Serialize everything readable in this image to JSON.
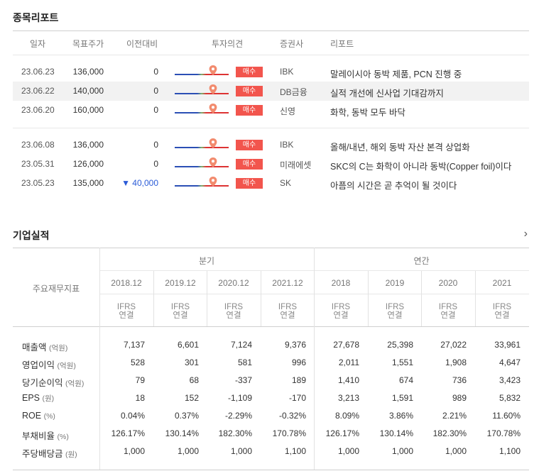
{
  "reports": {
    "title": "종목리포트",
    "headers": [
      "일자",
      "목표주가",
      "이전대비",
      "투자의견",
      "증권사",
      "리포트"
    ],
    "rows": [
      {
        "date": "23.06.23",
        "price": "136,000",
        "diff": "0",
        "diff_down": false,
        "opinion": "매수",
        "broker": "IBK",
        "title": "말레이시아 동박 제품, PCN 진행 중"
      },
      {
        "date": "23.06.22",
        "price": "140,000",
        "diff": "0",
        "diff_down": false,
        "opinion": "매수",
        "broker": "DB금융",
        "title": "실적 개선에 신사업 기대감까지"
      },
      {
        "date": "23.06.20",
        "price": "160,000",
        "diff": "0",
        "diff_down": false,
        "opinion": "매수",
        "broker": "신영",
        "title": "화학, 동박 모두 바닥"
      },
      {
        "date": "23.06.08",
        "price": "136,000",
        "diff": "0",
        "diff_down": false,
        "opinion": "매수",
        "broker": "IBK",
        "title": "올해/내년, 해외 동박 자산 본격 상업화"
      },
      {
        "date": "23.05.31",
        "price": "126,000",
        "diff": "0",
        "diff_down": false,
        "opinion": "매수",
        "broker": "미래에셋",
        "title": "SKC의 C는 화학이 아니라 동박(Copper foil)이다"
      },
      {
        "date": "23.05.23",
        "price": "135,000",
        "diff": "▼ 40,000",
        "diff_down": true,
        "opinion": "매수",
        "broker": "SK",
        "title": "아픔의 시간은 곧 추억이 될 것이다"
      }
    ]
  },
  "financials": {
    "title": "기업실적",
    "row_header": "주요재무지표",
    "group_quarter": "분기",
    "group_annual": "연간",
    "periods": [
      "2018.12",
      "2019.12",
      "2020.12",
      "2021.12",
      "2018",
      "2019",
      "2020",
      "2021"
    ],
    "ifrs_line1": "IFRS",
    "ifrs_line2": "연결",
    "rows": [
      {
        "label": "매출액",
        "unit": "(억원)",
        "values": [
          "7,137",
          "6,601",
          "7,124",
          "9,376",
          "27,678",
          "25,398",
          "27,022",
          "33,961"
        ]
      },
      {
        "label": "영업이익",
        "unit": "(억원)",
        "values": [
          "528",
          "301",
          "581",
          "996",
          "2,011",
          "1,551",
          "1,908",
          "4,647"
        ]
      },
      {
        "label": "당기순이익",
        "unit": "(억원)",
        "values": [
          "79",
          "68",
          "-337",
          "189",
          "1,410",
          "674",
          "736",
          "3,423"
        ]
      },
      {
        "label": "EPS",
        "unit": "(원)",
        "values": [
          "18",
          "152",
          "-1,109",
          "-170",
          "3,213",
          "1,591",
          "989",
          "5,832"
        ]
      },
      {
        "label": "ROE",
        "unit": "(%)",
        "values": [
          "0.04%",
          "0.37%",
          "-2.29%",
          "-0.32%",
          "8.09%",
          "3.86%",
          "2.21%",
          "11.60%"
        ]
      },
      {
        "label": "부채비율",
        "unit": "(%)",
        "values": [
          "126.17%",
          "130.14%",
          "182.30%",
          "170.78%",
          "126.17%",
          "130.14%",
          "182.30%",
          "170.78%"
        ]
      },
      {
        "label": "주당배당금",
        "unit": "(원)",
        "values": [
          "1,000",
          "1,000",
          "1,000",
          "1,100",
          "1,000",
          "1,000",
          "1,000",
          "1,100"
        ]
      }
    ]
  },
  "colors": {
    "badge": "#f2554d",
    "down": "#2a5bd7",
    "gauge_blue": "#2b4fb5",
    "gauge_red": "#dd3333",
    "pin": "#f28b6e"
  },
  "icons": {
    "more": "chevron-right-icon",
    "pin": "location-pin-icon"
  }
}
